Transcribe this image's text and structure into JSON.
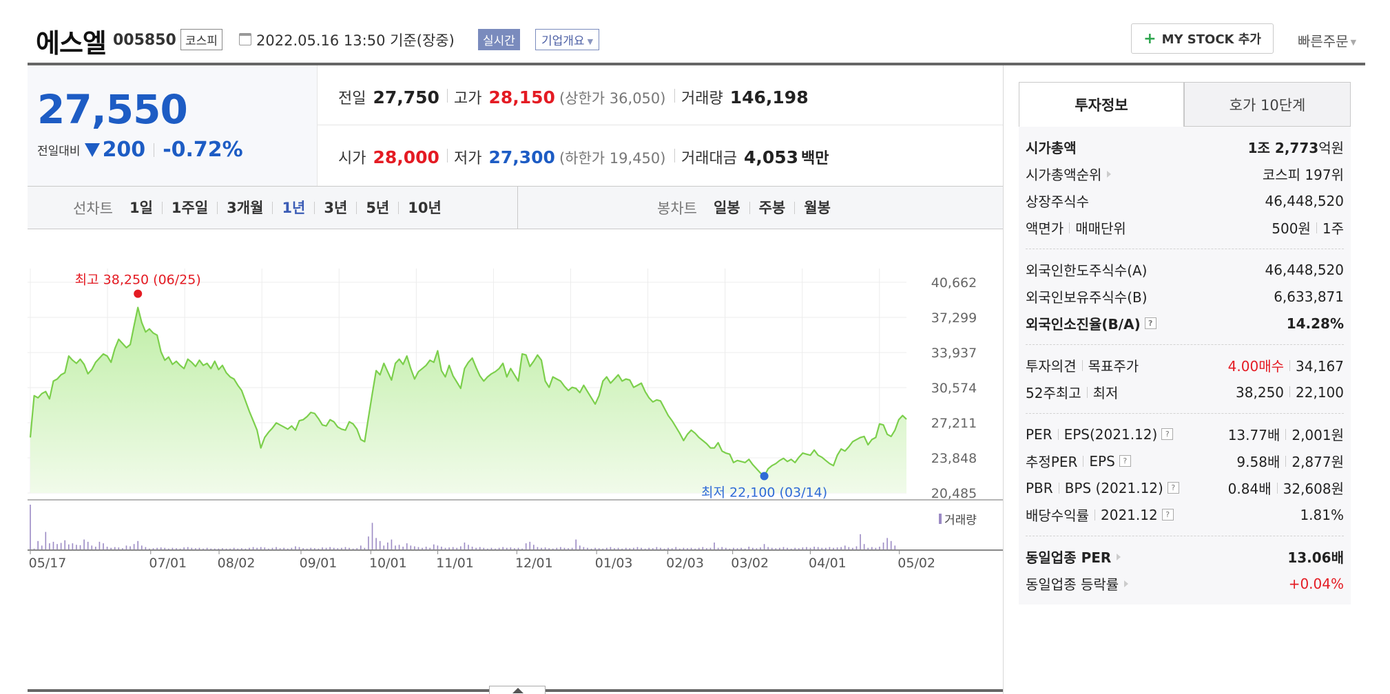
{
  "header": {
    "name": "에스엘",
    "code": "005850",
    "market": "코스피",
    "datetime": "2022.05.16 13:50  기준(장중)",
    "realtime": "실시간",
    "company_overview": "기업개요",
    "mystock": "MY STOCK 추가",
    "quick_order": "빠른주문"
  },
  "price": {
    "current": "27,550",
    "diff_label": "전일대비",
    "diff": "200",
    "rate": "-0.72%"
  },
  "stats": {
    "prev_label": "전일",
    "prev": "27,750",
    "high_label": "고가",
    "high": "28,150",
    "upper_limit": "(상한가 36,050)",
    "volume_label": "거래량",
    "volume": "146,198",
    "open_label": "시가",
    "open": "28,000",
    "low_label": "저가",
    "low": "27,300",
    "lower_limit": "(하한가 19,450)",
    "amount_label": "거래대금",
    "amount": "4,053",
    "amount_unit": "백만"
  },
  "periods": {
    "line_label": "선차트",
    "line_tabs": [
      "1일",
      "1주일",
      "3개월",
      "1년",
      "3년",
      "5년",
      "10년"
    ],
    "line_active": "1년",
    "candle_label": "봉차트",
    "candle_tabs": [
      "일봉",
      "주봉",
      "월봉"
    ]
  },
  "chart_data": {
    "type": "area",
    "period": "1년",
    "x_ticks": [
      "05/17",
      "07/01",
      "08/02",
      "09/01",
      "10/01",
      "11/01",
      "12/01",
      "01/03",
      "02/03",
      "03/02",
      "04/01",
      "05/02"
    ],
    "y_ticks": [
      40662,
      37299,
      33937,
      30574,
      27211,
      23848,
      20485
    ],
    "ylim": [
      20485,
      40662
    ],
    "high_annotation": "최고 38,250 (06/25)",
    "low_annotation": "최저 22,100 (03/14)",
    "high": 38250,
    "low": 22100,
    "volume_label": "거래량",
    "line_color": "#7ccf4c",
    "fill_color": "#c8f0b0",
    "volume_color": "#9b8ac4",
    "series": [
      {
        "values": [
          25800,
          29800,
          29600,
          30000,
          30200,
          29500,
          31200,
          31400,
          31800,
          32000,
          33600,
          33200,
          32900,
          33300,
          32800,
          31900,
          32300,
          33000,
          33400,
          33800,
          33600,
          33000,
          34300,
          35200,
          34800,
          34400,
          34700,
          36500,
          38250,
          36800,
          35900,
          36200,
          35800,
          35600,
          34000,
          33200,
          33500,
          32800,
          33100,
          32700,
          32400,
          33300,
          33000,
          32600,
          33200,
          32700,
          32900,
          32400,
          33100,
          32300,
          32700,
          32000,
          31600,
          31400,
          30800,
          30300,
          29300,
          28300,
          27400,
          26500,
          24800,
          25800,
          26300,
          26700,
          27200,
          27000,
          26800,
          26600,
          26900,
          26500,
          27400,
          27500,
          27800,
          28200,
          28100,
          27600,
          27000,
          26900,
          27500,
          27300,
          26800,
          26600,
          26500,
          27300,
          27100,
          26600,
          25600,
          25400,
          27700,
          30000,
          32200,
          31800,
          32900,
          32100,
          31300,
          32900,
          33300,
          32800,
          33600,
          32400,
          31400,
          32100,
          32400,
          32700,
          33200,
          33000,
          34100,
          32200,
          31600,
          32700,
          31700,
          31100,
          30500,
          32400,
          33000,
          33400,
          32500,
          31700,
          31200,
          31600,
          31900,
          32100,
          32400,
          32900,
          31600,
          32400,
          31800,
          31200,
          33800,
          33700,
          32600,
          33100,
          33700,
          33200,
          31200,
          30600,
          31600,
          31400,
          31200,
          30700,
          30300,
          30600,
          30500,
          30100,
          30800,
          30200,
          29600,
          29000,
          29800,
          31200,
          31600,
          31000,
          31400,
          31800,
          31200,
          31400,
          31300,
          30600,
          30800,
          31000,
          30200,
          29600,
          29200,
          29400,
          29300,
          28600,
          27900,
          27400,
          26800,
          26200,
          25500,
          26100,
          26500,
          26200,
          25800,
          25500,
          25200,
          24800,
          24800,
          25300,
          24500,
          24300,
          24200,
          23400,
          23600,
          23500,
          23400,
          23700,
          23200,
          22800,
          22400,
          22100,
          22800,
          23100,
          23300,
          23600,
          23800,
          23500,
          23700,
          23400,
          23900,
          24300,
          24200,
          24100,
          24600,
          24100,
          23900,
          23600,
          23300,
          23100,
          24100,
          24700,
          24500,
          24900,
          25400,
          25600,
          25800,
          25900,
          25100,
          25600,
          25800,
          27100,
          27000,
          26100,
          25900,
          26500,
          27500,
          27900,
          27550
        ]
      },
      {
        "name": "거래량",
        "values": [
          1200,
          40,
          240,
          120,
          480,
          180,
          220,
          160,
          190,
          260,
          150,
          180,
          140,
          130,
          280,
          220,
          120,
          90,
          220,
          180,
          90,
          60,
          80,
          70,
          50,
          120,
          100,
          160,
          240,
          120,
          80,
          40,
          50,
          60,
          70,
          60,
          40,
          60,
          50,
          40,
          70,
          80,
          60,
          50,
          60,
          40,
          60,
          40,
          40,
          40,
          50,
          40,
          40,
          60,
          40,
          50,
          40,
          60,
          80,
          60,
          80,
          70,
          40,
          60,
          80,
          50,
          60,
          40,
          60,
          100,
          80,
          50,
          40,
          60,
          50,
          40,
          70,
          60,
          80,
          60,
          50,
          60,
          80,
          60,
          40,
          50,
          120,
          60,
          360,
          720,
          320,
          240,
          120,
          200,
          280,
          120,
          140,
          90,
          180,
          120,
          100,
          80,
          60,
          90,
          60,
          150,
          120,
          90,
          60,
          70,
          80,
          60,
          100,
          200,
          140,
          90,
          60,
          80,
          60,
          40,
          60,
          40,
          60,
          80,
          60,
          70,
          50,
          60,
          40,
          180,
          220,
          140,
          80,
          60,
          70,
          50,
          40,
          60,
          80,
          60,
          50,
          60,
          280,
          120,
          80,
          60,
          40,
          60,
          50,
          40,
          60,
          80,
          50,
          60,
          40,
          60,
          50,
          60,
          80,
          60,
          40,
          60,
          50,
          80,
          60,
          40,
          60,
          50,
          80,
          40,
          60,
          50,
          60,
          40,
          60,
          80,
          50,
          60,
          200,
          60,
          80,
          60,
          40,
          60,
          50,
          60,
          40,
          90,
          60,
          50,
          70,
          160,
          80,
          60,
          50,
          60,
          80,
          60,
          40,
          60,
          50,
          70,
          80,
          60,
          90,
          80,
          60,
          60,
          80,
          60,
          70,
          80,
          120,
          80,
          60,
          100,
          420,
          160,
          60,
          80,
          60,
          90,
          200,
          320,
          240,
          120
        ]
      }
    ]
  },
  "side_tabs": [
    "투자정보",
    "호가 10단계"
  ],
  "invest_info": {
    "market_cap_label": "시가총액",
    "market_cap_a": "1조 2,773",
    "market_cap_b": "억원",
    "cap_rank_label": "시가총액순위",
    "cap_rank": "코스피 197위",
    "listed_label": "상장주식수",
    "listed": "46,448,520",
    "face_label": "액면가",
    "unit_label": "매매단위",
    "face": "500원",
    "unit": "1주",
    "foreign_limit_label": "외국인한도주식수(A)",
    "foreign_limit": "46,448,520",
    "foreign_hold_label": "외국인보유주식수(B)",
    "foreign_hold": "6,633,871",
    "foreign_rate_label": "외국인소진율(B/A)",
    "foreign_rate": "14.28%",
    "opinion_label": "투자의견",
    "target_label": "목표주가",
    "opinion": "4.00매수",
    "target": "34,167",
    "w52_label": "52주최고",
    "w52_low_label": "최저",
    "w52_high": "38,250",
    "w52_low": "22,100",
    "per_label": "PER",
    "eps_label": "EPS(2021.12)",
    "per": "13.77배",
    "eps": "2,001원",
    "eper_label": "추정PER",
    "eeps_label": "EPS",
    "eper": "9.58배",
    "eeps": "2,877원",
    "pbr_label": "PBR",
    "bps_label": "BPS (2021.12)",
    "pbr": "0.84배",
    "bps": "32,608원",
    "div_label": "배당수익률",
    "div_period": "2021.12",
    "div": "1.81%",
    "ind_per_label": "동일업종 PER",
    "ind_per": "13.06배",
    "ind_rate_label": "동일업종 등락률",
    "ind_rate": "+0.04%"
  }
}
